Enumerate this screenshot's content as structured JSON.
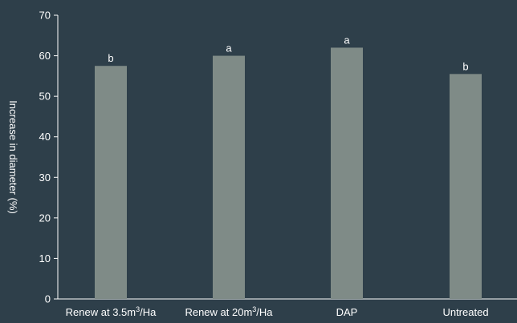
{
  "chart_data": {
    "type": "bar",
    "categories": [
      "Renew at 3.5m3/Ha",
      "Renew at 20m3/Ha",
      "DAP",
      "Untreated"
    ],
    "category_labels": [
      {
        "pre": "Renew at 3.5m",
        "sup": "3",
        "post": "/Ha"
      },
      {
        "pre": "Renew at 20m",
        "sup": "3",
        "post": "/Ha"
      },
      {
        "pre": "DAP",
        "sup": "",
        "post": ""
      },
      {
        "pre": "Untreated",
        "sup": "",
        "post": ""
      }
    ],
    "values": [
      57.5,
      60,
      62,
      55.5
    ],
    "data_labels": [
      "b",
      "a",
      "a",
      "b"
    ],
    "ylabel": "Increase in diameter (%)",
    "xlabel": "",
    "title": "",
    "ylim": [
      0,
      70
    ],
    "yticks": [
      0,
      10,
      20,
      30,
      40,
      50,
      60,
      70
    ],
    "grid": false,
    "colors": {
      "background": "#2e3f4a",
      "bar": "#7f8b87",
      "axis": "#ffffff",
      "text": "#ffffff"
    }
  }
}
